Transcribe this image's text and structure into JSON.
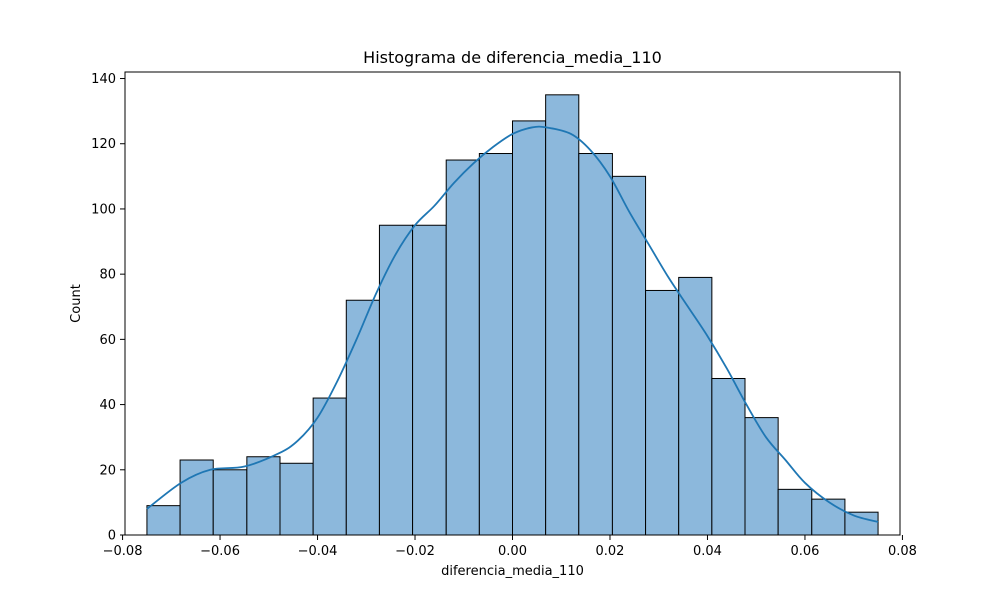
{
  "chart_data": {
    "type": "bar",
    "title": "Histograma de diferencia_media_110",
    "xlabel": "diferencia_media_110",
    "ylabel": "Count",
    "xlim": [
      -0.0795,
      0.0795
    ],
    "ylim": [
      0,
      142
    ],
    "xticks": [
      -0.08,
      -0.06,
      -0.04,
      -0.02,
      0.0,
      0.02,
      0.04,
      0.06,
      0.08
    ],
    "xtick_labels": [
      "−0.08",
      "−0.06",
      "−0.04",
      "−0.02",
      "0.00",
      "0.02",
      "0.04",
      "0.06",
      "0.08"
    ],
    "yticks": [
      0,
      20,
      40,
      60,
      80,
      100,
      120,
      140
    ],
    "ytick_labels": [
      "0",
      "20",
      "40",
      "60",
      "80",
      "100",
      "120",
      "140"
    ],
    "bins": {
      "edges": [
        -0.075,
        -0.0682,
        -0.0614,
        -0.0545,
        -0.0477,
        -0.0409,
        -0.0341,
        -0.0273,
        -0.0205,
        -0.0136,
        -0.0068,
        0.0,
        0.0068,
        0.0136,
        0.0205,
        0.0273,
        0.0341,
        0.0409,
        0.0477,
        0.0545,
        0.0614,
        0.0682,
        0.075
      ],
      "counts": [
        9,
        23,
        20,
        24,
        22,
        42,
        72,
        95,
        95,
        115,
        117,
        127,
        135,
        117,
        110,
        75,
        79,
        48,
        36,
        14,
        11,
        7
      ]
    },
    "kde": {
      "x": [
        -0.075,
        -0.068,
        -0.062,
        -0.055,
        -0.048,
        -0.044,
        -0.04,
        -0.036,
        -0.032,
        -0.028,
        -0.024,
        -0.02,
        -0.016,
        -0.012,
        -0.008,
        -0.004,
        0.0,
        0.004,
        0.007,
        0.012,
        0.016,
        0.02,
        0.024,
        0.028,
        0.032,
        0.036,
        0.04,
        0.044,
        0.048,
        0.052,
        0.056,
        0.06,
        0.065,
        0.07,
        0.075
      ],
      "y": [
        8,
        16,
        20,
        21,
        25,
        29,
        36,
        47,
        60,
        74,
        86,
        95,
        101,
        108,
        114,
        119,
        123,
        125,
        125,
        123,
        118,
        110,
        99,
        89,
        79,
        70,
        61,
        51,
        40,
        30,
        23,
        16,
        10,
        6,
        4
      ]
    },
    "colors": {
      "bar_fill": "#8cb8dc",
      "bar_edge": "#000000",
      "kde_line": "#1f77b4"
    },
    "grid": false,
    "legend": "none"
  }
}
